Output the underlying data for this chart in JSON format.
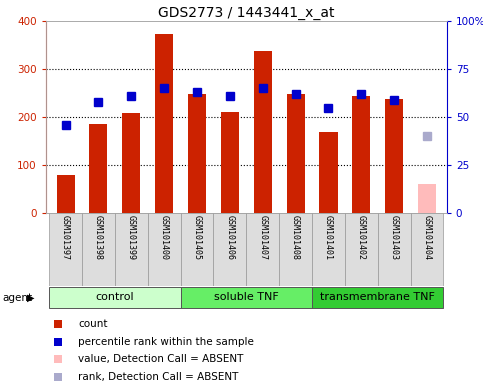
{
  "title": "GDS2773 / 1443441_x_at",
  "samples": [
    "GSM101397",
    "GSM101398",
    "GSM101399",
    "GSM101400",
    "GSM101405",
    "GSM101406",
    "GSM101407",
    "GSM101408",
    "GSM101401",
    "GSM101402",
    "GSM101403",
    "GSM101404"
  ],
  "count_values": [
    80,
    185,
    208,
    373,
    248,
    210,
    337,
    248,
    170,
    243,
    237,
    60
  ],
  "rank_values": [
    46,
    58,
    61,
    65,
    63,
    61,
    65,
    62,
    55,
    62,
    59,
    40
  ],
  "absent_mask": [
    false,
    false,
    false,
    false,
    false,
    false,
    false,
    false,
    false,
    false,
    false,
    true
  ],
  "groups": [
    {
      "label": "control",
      "start": 0,
      "end": 4,
      "color": "#ccffcc"
    },
    {
      "label": "soluble TNF",
      "start": 4,
      "end": 8,
      "color": "#66ee66"
    },
    {
      "label": "transmembrane TNF",
      "start": 8,
      "end": 12,
      "color": "#33cc33"
    }
  ],
  "bar_color_normal": "#cc2200",
  "bar_color_absent": "#ffbbbb",
  "rank_color_normal": "#0000cc",
  "rank_color_absent": "#aaaacc",
  "left_ylim": [
    0,
    400
  ],
  "right_ylim": [
    0,
    100
  ],
  "left_yticks": [
    0,
    100,
    200,
    300,
    400
  ],
  "right_yticks": [
    0,
    25,
    50,
    75,
    100
  ],
  "right_yticklabels": [
    "0",
    "25",
    "50",
    "75",
    "100%"
  ],
  "bar_color_left_label": "#cc2200",
  "rank_color_right_label": "#0000cc",
  "title_fontsize": 10,
  "tick_fontsize": 7.5,
  "sample_fontsize": 6,
  "legend_fontsize": 7.5,
  "group_fontsize": 8,
  "agent_label": "agent"
}
